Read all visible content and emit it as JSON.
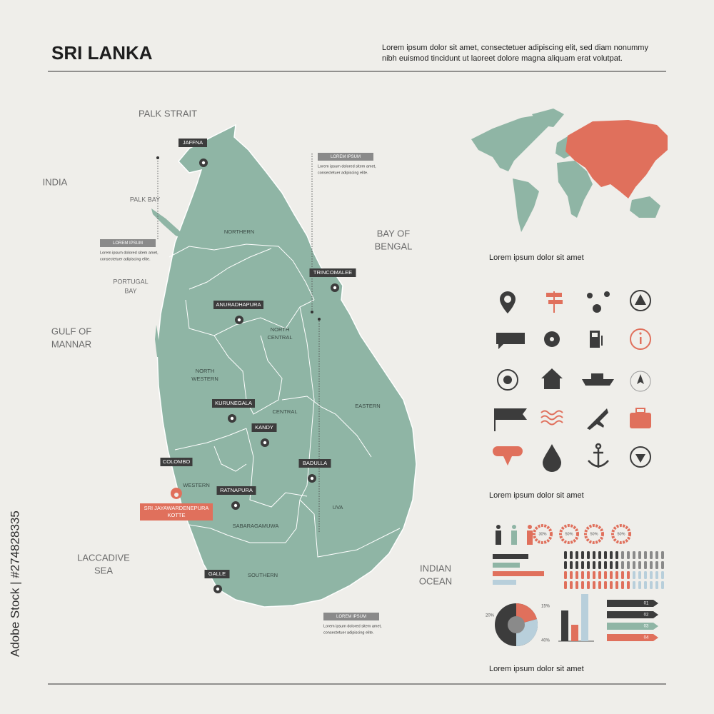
{
  "header": {
    "title": "SRI LANKA",
    "description": [
      "Lorem ipsum dolor sit amet, consectetuer adipiscing elit, sed diam nonummy",
      "nibh euismod tincidunt ut laoreet dolore magna aliquam erat volutpat."
    ]
  },
  "map": {
    "water_labels": [
      [
        "PALK STRAIT"
      ],
      [
        "INDIA"
      ],
      [
        "PALK BAY"
      ],
      [
        "BAY OF",
        "BENGAL"
      ],
      [
        "PORTUGAL",
        "BAY"
      ],
      [
        "GULF OF",
        "MANNAR"
      ],
      [
        "LACCADIVE",
        "SEA"
      ],
      [
        "INDIAN",
        "OCEAN"
      ]
    ],
    "provinces": [
      [
        "NORTHERN"
      ],
      [
        "NORTH",
        "CENTRAL"
      ],
      [
        "NORTH",
        "WESTERN"
      ],
      [
        "CENTRAL"
      ],
      [
        "EASTERN"
      ],
      [
        "WESTERN"
      ],
      [
        "SABARAGAMUWA"
      ],
      [
        "UVA"
      ],
      [
        "SOUTHERN"
      ]
    ],
    "cities": [
      "JAFFNA",
      "TRINCOMALEE",
      "ANURADHAPURA",
      "KURUNEGALA",
      "KANDY",
      "COLOMBO",
      "BADULLA",
      "RATNAPURA",
      "GALLE"
    ],
    "capital": [
      "SRI JAYAWARDENEPURA",
      "KOTTE"
    ],
    "callouts": [
      {
        "title": "LOREM IPSUM",
        "text": [
          "Lorem ipsum dolored sitem amet,",
          "consectetuer adipiscing elite."
        ]
      },
      {
        "title": "LOREM IPSUM",
        "text": [
          "Lorem ipsum dolored sitem amet,",
          "consectetuer adipiscing elite."
        ]
      },
      {
        "title": "LOREM IPSUM",
        "text": [
          "Lorem ipsum dolored sitem amet,",
          "consectetuer adipiscing elite."
        ]
      }
    ]
  },
  "sidebar": {
    "captions": [
      "Lorem ipsum dolor sit amet",
      "Lorem ipsum dolor sit amet",
      "Lorem ipsum dolor sit amet"
    ],
    "donuts": [
      "30%",
      "50%",
      "50%",
      "50%"
    ],
    "pie_labels": [
      "20%",
      "15%",
      "40%"
    ],
    "ribbons": [
      "01",
      "02",
      "03",
      "04"
    ]
  },
  "watermark": "Adobe Stock | #274828335"
}
